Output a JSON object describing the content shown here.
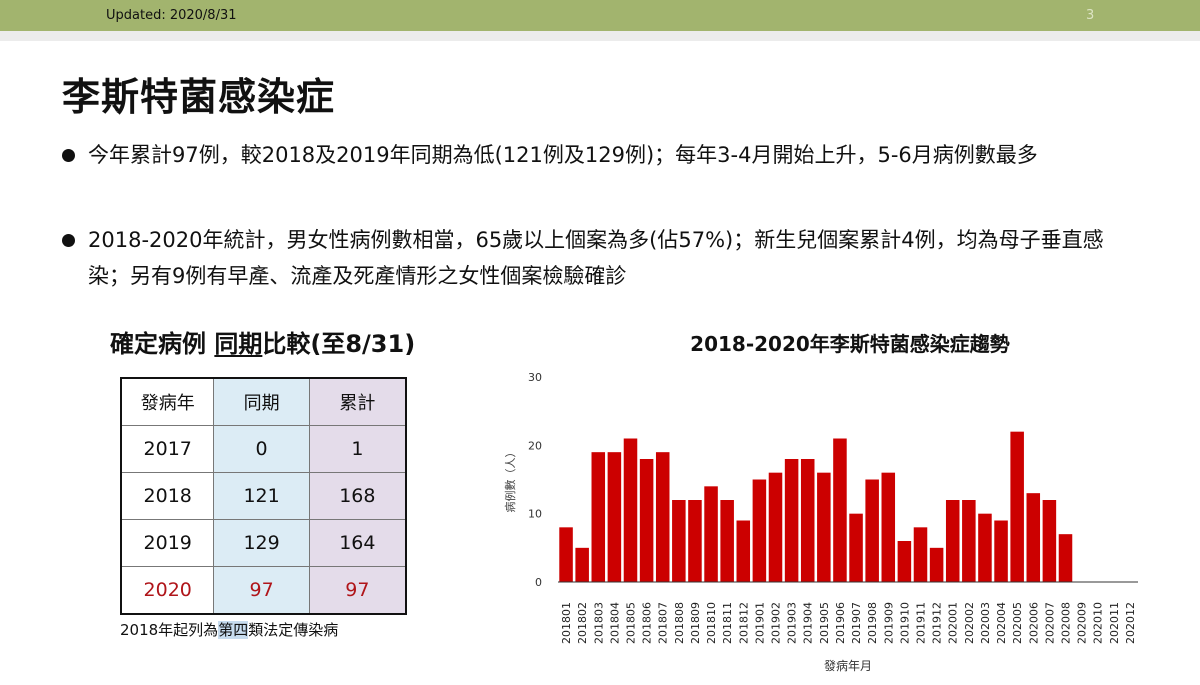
{
  "header": {
    "updated": "Updated: 2020/8/31",
    "page_number": "3"
  },
  "title": "李斯特菌感染症",
  "bullets": [
    "今年累計97例，較2018及2019年同期為低(121例及129例)；每年3-4月開始上升，5-6月病例數最多",
    "2018-2020年統計，男女性病例數相當，65歲以上個案為多(佔57%)；新生兒個案累計4例，均為母子垂直感染；另有9例有早產、流產及死產情形之女性個案檢驗確診"
  ],
  "table": {
    "title_a": "確定病例",
    "title_b": "同期",
    "title_c": "比較(至8/31)",
    "headers": [
      "發病年",
      "同期",
      "累計"
    ],
    "rows": [
      [
        "2017",
        "0",
        "1"
      ],
      [
        "2018",
        "121",
        "168"
      ],
      [
        "2019",
        "129",
        "164"
      ],
      [
        "2020",
        "97",
        "97"
      ]
    ],
    "note_a": "2018年起列為",
    "note_b": "第四",
    "note_c": "類法定傳染病"
  },
  "colors": {
    "bar": "#cc0000",
    "highlight_row": "#b0151a",
    "topbar": "#a2b46e"
  },
  "chart_data": {
    "type": "bar",
    "title": "2018-2020年李斯特菌感染症趨勢",
    "xlabel": "發病年月",
    "ylabel": "病例數（人）",
    "ylim": [
      0,
      30
    ],
    "yticks": [
      "0",
      "10",
      "20",
      "30"
    ],
    "grid": false,
    "categories": [
      "201801",
      "201802",
      "201803",
      "201804",
      "201805",
      "201806",
      "201807",
      "201808",
      "201809",
      "201810",
      "201811",
      "201812",
      "201901",
      "201902",
      "201903",
      "201904",
      "201905",
      "201906",
      "201907",
      "201908",
      "201909",
      "201910",
      "201911",
      "201912",
      "202001",
      "202002",
      "202003",
      "202004",
      "202005",
      "202006",
      "202007",
      "202008",
      "202009",
      "202010",
      "202011",
      "202012"
    ],
    "values": [
      8,
      5,
      19,
      19,
      21,
      18,
      19,
      12,
      12,
      14,
      12,
      9,
      15,
      16,
      18,
      18,
      16,
      21,
      10,
      15,
      16,
      6,
      8,
      5,
      12,
      12,
      10,
      9,
      22,
      13,
      12,
      7,
      0,
      0,
      0,
      0
    ]
  }
}
